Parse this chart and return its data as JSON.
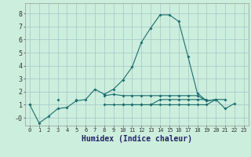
{
  "xlabel": "Humidex (Indice chaleur)",
  "background_color": "#cceedd",
  "grid_color": "#aacccc",
  "line_color": "#1a6e6e",
  "x_values": [
    0,
    1,
    2,
    3,
    4,
    5,
    6,
    7,
    8,
    9,
    10,
    11,
    12,
    13,
    14,
    15,
    16,
    17,
    18,
    19,
    20,
    21,
    22,
    23
  ],
  "series": [
    [
      1.0,
      -0.4,
      0.1,
      0.7,
      0.8,
      1.3,
      1.4,
      2.2,
      1.8,
      2.2,
      2.9,
      3.9,
      5.8,
      6.9,
      7.9,
      7.9,
      7.4,
      4.7,
      1.9,
      1.3,
      1.4,
      0.7,
      1.1,
      null
    ],
    [
      1.0,
      null,
      null,
      1.4,
      null,
      1.4,
      null,
      null,
      1.7,
      1.8,
      1.7,
      1.7,
      1.7,
      1.7,
      1.7,
      1.7,
      1.7,
      1.7,
      1.7,
      1.3,
      1.4,
      1.4,
      null,
      null
    ],
    [
      null,
      null,
      null,
      null,
      null,
      null,
      null,
      null,
      null,
      null,
      1.0,
      1.0,
      1.0,
      1.0,
      1.4,
      1.4,
      1.4,
      1.4,
      1.4,
      1.4,
      null,
      null,
      null,
      null
    ],
    [
      null,
      null,
      null,
      null,
      null,
      null,
      null,
      null,
      1.0,
      1.0,
      1.0,
      1.0,
      1.0,
      1.0,
      1.0,
      1.0,
      1.0,
      1.0,
      1.0,
      1.0,
      1.4,
      null,
      null,
      null
    ]
  ],
  "ylim": [
    -0.6,
    8.8
  ],
  "xlim": [
    -0.5,
    23.5
  ],
  "yticks": [
    0,
    1,
    2,
    3,
    4,
    5,
    6,
    7,
    8
  ],
  "ytick_labels": [
    "-0",
    "1",
    "2",
    "3",
    "4",
    "5",
    "6",
    "7",
    "8"
  ],
  "xticks": [
    0,
    1,
    2,
    3,
    4,
    5,
    6,
    7,
    8,
    9,
    10,
    11,
    12,
    13,
    14,
    15,
    16,
    17,
    18,
    19,
    20,
    21,
    22,
    23
  ],
  "ylabel_fontsize": 6.5,
  "xlabel_fontsize": 7.0,
  "tick_fontsize_x": 5.0,
  "tick_fontsize_y": 6.0
}
